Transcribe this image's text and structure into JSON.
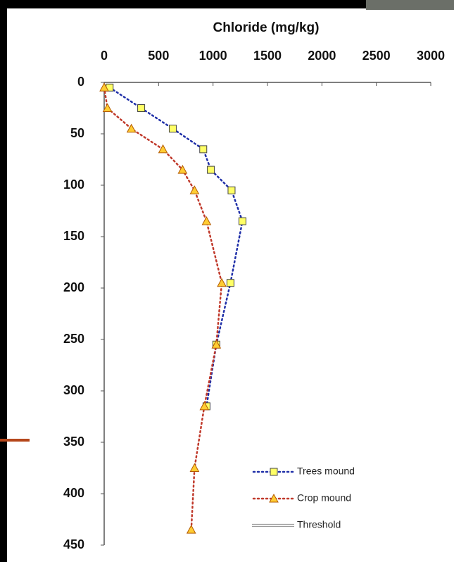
{
  "chart_data": {
    "type": "line",
    "title": "Chloride (mg/kg)",
    "xlim": [
      0,
      3000
    ],
    "xticks": [
      0,
      500,
      1000,
      1500,
      2000,
      2500,
      3000
    ],
    "ylim": [
      0,
      450
    ],
    "yticks": [
      0,
      50,
      100,
      150,
      200,
      250,
      300,
      350,
      400,
      450
    ],
    "y_reversed": true,
    "x_axis_position": "top",
    "legend_position": "lower right",
    "series": [
      {
        "name": "Trees mound",
        "color": "#1f2fa8",
        "marker": "square",
        "marker_fill": "#ffff66",
        "x": [
          50,
          340,
          630,
          910,
          980,
          1170,
          1270,
          1160,
          1030,
          940
        ],
        "values": [
          5,
          25,
          45,
          65,
          85,
          105,
          135,
          195,
          255,
          315
        ]
      },
      {
        "name": "Crop mound",
        "color": "#c0392b",
        "marker": "triangle",
        "marker_fill": "#ffcc33",
        "x": [
          0,
          30,
          250,
          540,
          720,
          830,
          940,
          1080,
          1030,
          920,
          830,
          800
        ],
        "values": [
          5,
          25,
          45,
          65,
          85,
          105,
          135,
          195,
          255,
          315,
          375,
          435
        ]
      },
      {
        "name": "Threshold",
        "color": "#999999",
        "marker": "none",
        "x": [],
        "values": []
      }
    ]
  }
}
